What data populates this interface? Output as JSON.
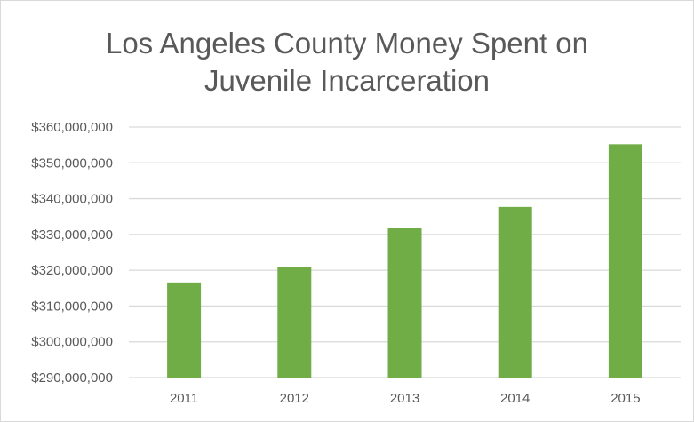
{
  "chart_data": {
    "type": "bar",
    "title_lines": [
      "Los Angeles County Money Spent on",
      "Juvenile Incarceration"
    ],
    "categories": [
      "2011",
      "2012",
      "2013",
      "2014",
      "2015"
    ],
    "values": [
      316600000,
      320800000,
      331700000,
      337700000,
      355200000
    ],
    "ylim": [
      290000000,
      360000000
    ],
    "yticks": [
      "$290,000,000",
      "$300,000,000",
      "$310,000,000",
      "$320,000,000",
      "$330,000,000",
      "$340,000,000",
      "$350,000,000",
      "$360,000,000"
    ],
    "xlabel": "",
    "ylabel": "",
    "grid": true,
    "bar_color": "#70ad47",
    "grid_color": "#d9d9d9"
  }
}
